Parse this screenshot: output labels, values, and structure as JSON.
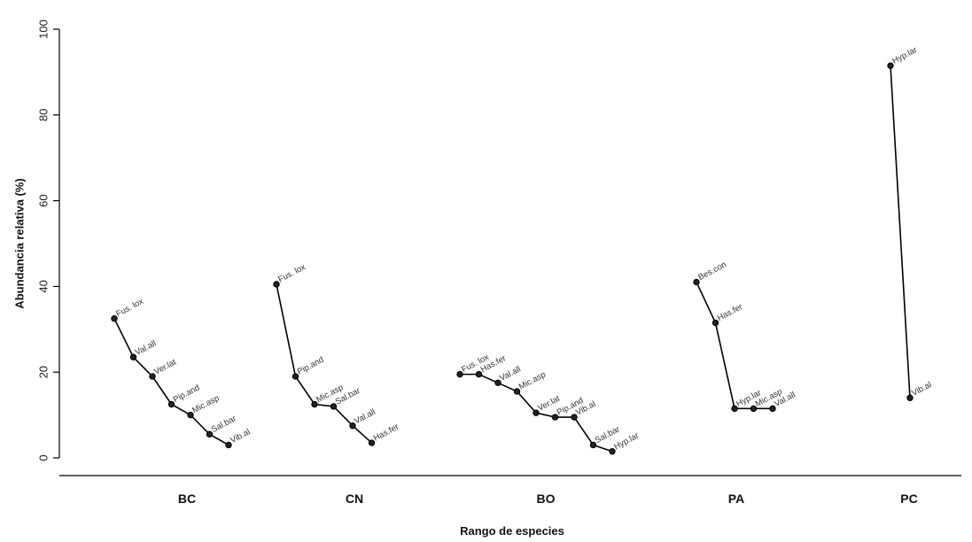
{
  "chart_data": {
    "type": "line",
    "title": "",
    "xlabel": "Rango de especies",
    "ylabel": "Abundancia relativa (%)",
    "ylim": [
      0,
      100
    ],
    "yticks": [
      "0",
      "20",
      "40",
      "60",
      "80",
      "100"
    ],
    "grid": false,
    "legend": "none",
    "groups": [
      {
        "name": "BC",
        "points": [
          {
            "label": "Fus. lox",
            "value": 32.5
          },
          {
            "label": "Val.all",
            "value": 23.5
          },
          {
            "label": "Ver.lat",
            "value": 19.0
          },
          {
            "label": "Pip.and",
            "value": 12.5
          },
          {
            "label": "Mic.asp",
            "value": 10.0
          },
          {
            "label": "Sal.bar",
            "value": 5.5
          },
          {
            "label": "Vib.al",
            "value": 3.0
          }
        ]
      },
      {
        "name": "CN",
        "points": [
          {
            "label": "Fus. lox",
            "value": 40.5
          },
          {
            "label": "Pip.and",
            "value": 19.0
          },
          {
            "label": "Mic.asp",
            "value": 12.5
          },
          {
            "label": "Sal.bar",
            "value": 12.0
          },
          {
            "label": "Val.all",
            "value": 7.5
          },
          {
            "label": "Has.fer",
            "value": 3.5
          }
        ]
      },
      {
        "name": "BO",
        "points": [
          {
            "label": "Fus. lox",
            "value": 19.5
          },
          {
            "label": "Has.fer",
            "value": 19.5
          },
          {
            "label": "Val.all",
            "value": 17.5
          },
          {
            "label": "Mic.asp",
            "value": 15.5
          },
          {
            "label": "Ver.lat",
            "value": 10.5
          },
          {
            "label": "Pip.and",
            "value": 9.5
          },
          {
            "label": "Vib.al",
            "value": 9.5
          },
          {
            "label": "Sal.bar",
            "value": 3.0
          },
          {
            "label": "Hyp.lar",
            "value": 1.5
          }
        ]
      },
      {
        "name": "PA",
        "points": [
          {
            "label": "Bes.con",
            "value": 41.0
          },
          {
            "label": "Has.fer",
            "value": 31.5
          },
          {
            "label": "Hyp.lar",
            "value": 11.5
          },
          {
            "label": "Mic.asp",
            "value": 11.5
          },
          {
            "label": "Val.all",
            "value": 11.5
          }
        ]
      },
      {
        "name": "PC",
        "points": [
          {
            "label": "Hyp.lar",
            "value": 91.5
          },
          {
            "label": "Vib.al",
            "value": 14.0
          }
        ]
      }
    ]
  }
}
